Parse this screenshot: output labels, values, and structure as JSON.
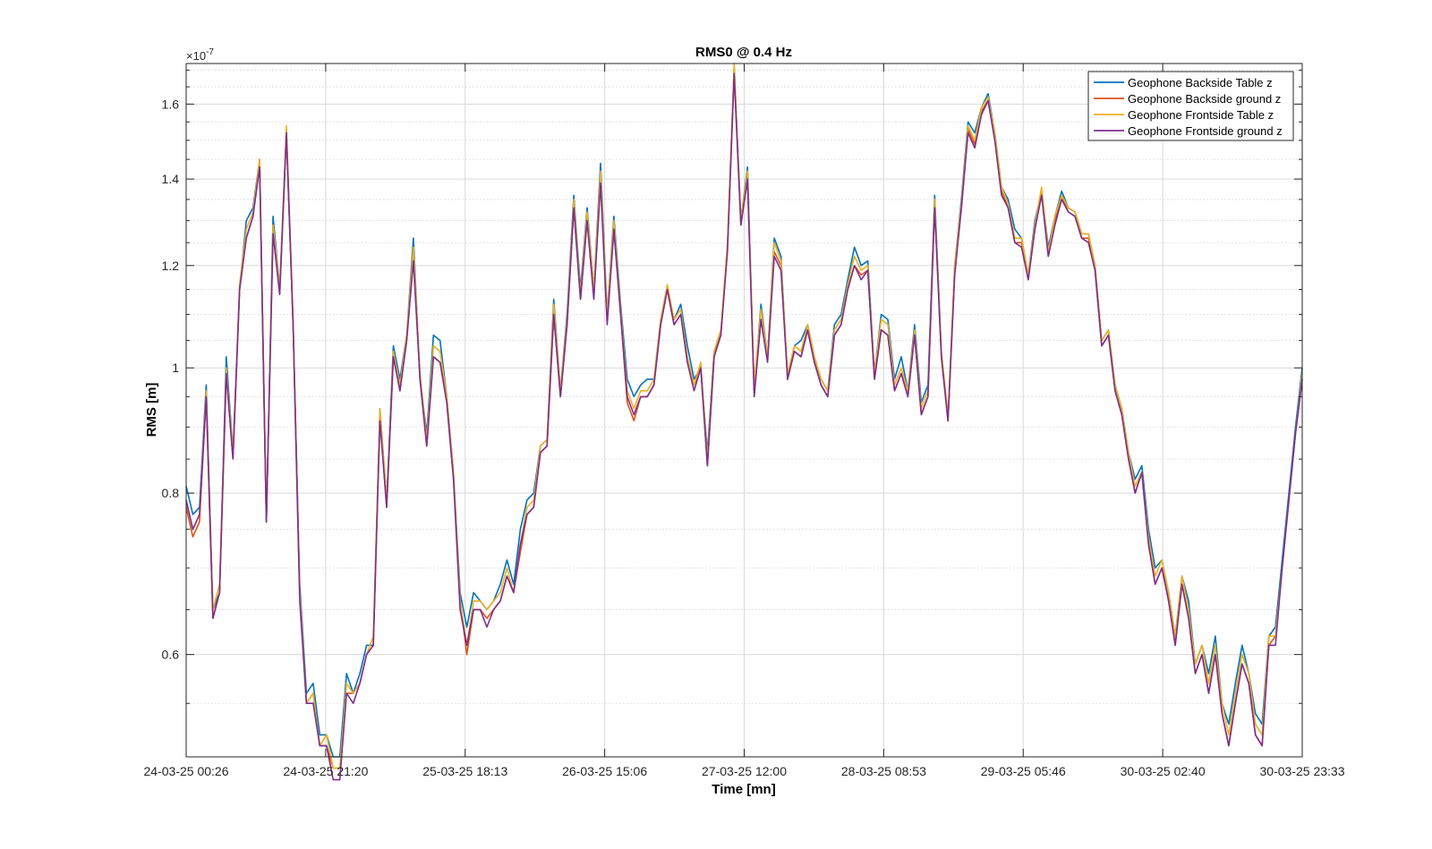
{
  "chart_data": {
    "type": "line",
    "title": "RMS0 @ 0.4 Hz",
    "xlabel": "Time [mn]",
    "ylabel": "RMS [m]",
    "y_exponent_label": "×10",
    "y_exponent_power": "-7",
    "y_scale": "log",
    "ylim": [
      0.5,
      1.72
    ],
    "y_ticks": [
      0.6,
      0.8,
      1.0,
      1.2,
      1.4,
      1.6
    ],
    "y_tick_labels": [
      "0.6",
      "0.8",
      "1",
      "1.2",
      "1.4",
      "1.6"
    ],
    "y_minor_ticks": [
      0.5,
      0.55,
      0.65,
      0.7,
      0.75,
      0.85,
      0.9,
      0.95,
      1.05,
      1.1,
      1.15,
      1.25,
      1.3,
      1.35,
      1.45,
      1.5,
      1.55,
      1.65,
      1.7
    ],
    "x_tick_labels": [
      "24-03-25 00:26",
      "24-03-25 21:20",
      "25-03-25 18:13",
      "26-03-25 15:06",
      "27-03-25 12:00",
      "28-03-25 08:53",
      "29-03-25 05:46",
      "30-03-25 02:40",
      "30-03-25 23:33"
    ],
    "x_start": "24-03-25 00:26",
    "x_end": "30-03-25 23:33",
    "grid": true,
    "legend_position": "top-right",
    "series": [
      {
        "name": "Geophone Backside Table z",
        "color": "#0072BD",
        "values": [
          0.81,
          0.77,
          0.78,
          0.97,
          0.65,
          0.67,
          1.02,
          0.86,
          1.15,
          1.3,
          1.33,
          1.45,
          0.76,
          1.31,
          1.15,
          1.52,
          1.08,
          0.68,
          0.56,
          0.57,
          0.52,
          0.52,
          0.5,
          0.5,
          0.58,
          0.56,
          0.58,
          0.61,
          0.61,
          0.93,
          0.79,
          1.04,
          0.98,
          1.06,
          1.26,
          0.98,
          0.89,
          1.06,
          1.05,
          0.95,
          0.83,
          0.67,
          0.63,
          0.67,
          0.66,
          0.65,
          0.66,
          0.68,
          0.71,
          0.68,
          0.75,
          0.79,
          0.8,
          0.87,
          0.88,
          1.13,
          0.96,
          1.1,
          1.36,
          1.15,
          1.33,
          1.15,
          1.44,
          1.1,
          1.31,
          1.12,
          0.98,
          0.95,
          0.97,
          0.98,
          0.98,
          1.09,
          1.15,
          1.09,
          1.12,
          1.04,
          0.98,
          1.0,
          0.86,
          1.03,
          1.06,
          1.24,
          1.71,
          1.3,
          1.43,
          0.96,
          1.12,
          1.02,
          1.26,
          1.22,
          0.98,
          1.04,
          1.05,
          1.08,
          1.02,
          0.98,
          0.96,
          1.08,
          1.1,
          1.17,
          1.24,
          1.2,
          1.21,
          0.99,
          1.1,
          1.09,
          0.98,
          1.02,
          0.96,
          1.08,
          0.94,
          0.97,
          1.36,
          1.03,
          0.91,
          1.2,
          1.35,
          1.55,
          1.52,
          1.59,
          1.63,
          1.52,
          1.38,
          1.35,
          1.28,
          1.26,
          1.18,
          1.3,
          1.37,
          1.24,
          1.31,
          1.37,
          1.33,
          1.32,
          1.27,
          1.27,
          1.2,
          1.05,
          1.07,
          0.97,
          0.93,
          0.86,
          0.82,
          0.84,
          0.75,
          0.7,
          0.71,
          0.67,
          0.62,
          0.69,
          0.66,
          0.59,
          0.61,
          0.58,
          0.62,
          0.55,
          0.53,
          0.57,
          0.61,
          0.58,
          0.54,
          0.53,
          0.62,
          0.63,
          0.71,
          0.8,
          0.9,
          1.0
        ]
      },
      {
        "name": "Geophone Backside ground z",
        "color": "#D95319",
        "values": [
          0.78,
          0.74,
          0.76,
          0.95,
          0.64,
          0.67,
          0.99,
          0.85,
          1.15,
          1.26,
          1.31,
          1.44,
          0.76,
          1.28,
          1.14,
          1.52,
          1.08,
          0.67,
          0.55,
          0.56,
          0.51,
          0.51,
          0.49,
          0.49,
          0.56,
          0.56,
          0.57,
          0.6,
          0.61,
          0.92,
          0.78,
          1.02,
          0.96,
          1.05,
          1.22,
          0.98,
          0.87,
          1.02,
          1.01,
          0.94,
          0.82,
          0.66,
          0.6,
          0.65,
          0.65,
          0.64,
          0.65,
          0.66,
          0.69,
          0.67,
          0.72,
          0.77,
          0.78,
          0.86,
          0.87,
          1.1,
          0.95,
          1.08,
          1.33,
          1.13,
          1.3,
          1.14,
          1.4,
          1.09,
          1.28,
          1.1,
          0.94,
          0.91,
          0.95,
          0.95,
          0.97,
          1.08,
          1.15,
          1.08,
          1.1,
          1.01,
          0.97,
          1.0,
          0.84,
          1.02,
          1.06,
          1.24,
          1.69,
          1.29,
          1.4,
          0.96,
          1.09,
          1.02,
          1.23,
          1.2,
          0.98,
          1.03,
          1.02,
          1.07,
          1.01,
          0.97,
          0.95,
          1.06,
          1.08,
          1.15,
          1.2,
          1.18,
          1.19,
          0.98,
          1.07,
          1.06,
          0.96,
          0.99,
          0.95,
          1.06,
          0.92,
          0.95,
          1.34,
          1.02,
          0.91,
          1.19,
          1.33,
          1.53,
          1.49,
          1.58,
          1.61,
          1.51,
          1.37,
          1.33,
          1.25,
          1.25,
          1.17,
          1.28,
          1.37,
          1.22,
          1.3,
          1.36,
          1.32,
          1.31,
          1.26,
          1.26,
          1.19,
          1.04,
          1.06,
          0.96,
          0.92,
          0.85,
          0.8,
          0.83,
          0.73,
          0.68,
          0.7,
          0.66,
          0.61,
          0.68,
          0.64,
          0.58,
          0.6,
          0.56,
          0.6,
          0.54,
          0.51,
          0.55,
          0.59,
          0.57,
          0.52,
          0.51,
          0.61,
          0.62,
          0.7,
          0.79,
          0.89,
          0.98
        ]
      },
      {
        "name": "Geophone Frontside Table z",
        "color": "#EDB120",
        "values": [
          0.79,
          0.75,
          0.77,
          0.96,
          0.65,
          0.68,
          1.0,
          0.86,
          1.16,
          1.28,
          1.32,
          1.45,
          0.77,
          1.29,
          1.15,
          1.54,
          1.09,
          0.67,
          0.55,
          0.56,
          0.51,
          0.52,
          0.49,
          0.49,
          0.57,
          0.56,
          0.57,
          0.6,
          0.62,
          0.93,
          0.79,
          1.03,
          0.97,
          1.06,
          1.24,
          0.99,
          0.88,
          1.04,
          1.03,
          0.95,
          0.83,
          0.66,
          0.61,
          0.66,
          0.66,
          0.65,
          0.66,
          0.67,
          0.7,
          0.67,
          0.73,
          0.78,
          0.79,
          0.87,
          0.88,
          1.12,
          0.96,
          1.09,
          1.35,
          1.14,
          1.32,
          1.15,
          1.42,
          1.1,
          1.3,
          1.11,
          0.96,
          0.93,
          0.96,
          0.96,
          0.98,
          1.09,
          1.16,
          1.09,
          1.11,
          1.02,
          0.97,
          1.01,
          0.85,
          1.03,
          1.07,
          1.25,
          1.72,
          1.3,
          1.42,
          0.97,
          1.11,
          1.02,
          1.25,
          1.21,
          0.99,
          1.04,
          1.03,
          1.08,
          1.02,
          0.98,
          0.96,
          1.07,
          1.09,
          1.16,
          1.22,
          1.19,
          1.2,
          0.99,
          1.09,
          1.08,
          0.97,
          1.0,
          0.96,
          1.07,
          0.93,
          0.96,
          1.35,
          1.03,
          0.92,
          1.2,
          1.34,
          1.54,
          1.5,
          1.59,
          1.62,
          1.52,
          1.38,
          1.34,
          1.26,
          1.26,
          1.18,
          1.29,
          1.38,
          1.23,
          1.31,
          1.36,
          1.33,
          1.32,
          1.27,
          1.27,
          1.2,
          1.05,
          1.07,
          0.97,
          0.93,
          0.86,
          0.81,
          0.83,
          0.74,
          0.69,
          0.71,
          0.67,
          0.62,
          0.69,
          0.65,
          0.59,
          0.61,
          0.57,
          0.61,
          0.55,
          0.52,
          0.56,
          0.6,
          0.58,
          0.53,
          0.52,
          0.62,
          0.62,
          0.7,
          0.79,
          0.89,
          0.99
        ]
      },
      {
        "name": "Geophone Frontside ground z",
        "color": "#7E2F8E",
        "values": [
          0.79,
          0.75,
          0.77,
          0.95,
          0.64,
          0.67,
          0.99,
          0.85,
          1.15,
          1.26,
          1.31,
          1.43,
          0.76,
          1.27,
          1.14,
          1.52,
          1.08,
          0.66,
          0.55,
          0.55,
          0.51,
          0.51,
          0.48,
          0.48,
          0.56,
          0.55,
          0.57,
          0.6,
          0.61,
          0.91,
          0.78,
          1.02,
          0.96,
          1.05,
          1.21,
          0.98,
          0.87,
          1.02,
          1.01,
          0.94,
          0.82,
          0.65,
          0.61,
          0.65,
          0.65,
          0.63,
          0.65,
          0.66,
          0.69,
          0.67,
          0.73,
          0.77,
          0.78,
          0.86,
          0.87,
          1.1,
          0.95,
          1.08,
          1.33,
          1.13,
          1.3,
          1.13,
          1.39,
          1.08,
          1.28,
          1.1,
          0.95,
          0.92,
          0.95,
          0.95,
          0.97,
          1.08,
          1.15,
          1.08,
          1.1,
          1.01,
          0.96,
          1.0,
          0.84,
          1.02,
          1.06,
          1.23,
          1.69,
          1.29,
          1.4,
          0.95,
          1.09,
          1.01,
          1.22,
          1.19,
          0.98,
          1.03,
          1.02,
          1.07,
          1.01,
          0.97,
          0.95,
          1.06,
          1.08,
          1.15,
          1.2,
          1.17,
          1.19,
          0.98,
          1.07,
          1.06,
          0.96,
          0.99,
          0.95,
          1.06,
          0.92,
          0.95,
          1.33,
          1.02,
          0.91,
          1.18,
          1.33,
          1.52,
          1.48,
          1.57,
          1.61,
          1.5,
          1.36,
          1.33,
          1.25,
          1.24,
          1.17,
          1.28,
          1.36,
          1.22,
          1.29,
          1.35,
          1.32,
          1.31,
          1.26,
          1.25,
          1.19,
          1.04,
          1.06,
          0.96,
          0.92,
          0.85,
          0.8,
          0.83,
          0.73,
          0.68,
          0.7,
          0.66,
          0.61,
          0.68,
          0.64,
          0.58,
          0.6,
          0.56,
          0.6,
          0.54,
          0.51,
          0.55,
          0.59,
          0.57,
          0.52,
          0.51,
          0.61,
          0.61,
          0.7,
          0.79,
          0.89,
          0.98
        ]
      }
    ]
  }
}
